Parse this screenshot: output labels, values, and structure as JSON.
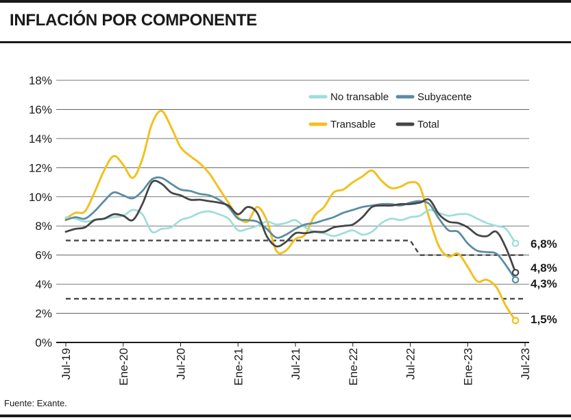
{
  "header": {
    "title": "INFLACIÓN POR COMPONENTE"
  },
  "footer": {
    "source": "Fuente: Exante."
  },
  "chart_data": {
    "type": "line",
    "title": "INFLACIÓN POR COMPONENTE",
    "xlabel": "",
    "ylabel": "",
    "ylim": [
      0,
      18
    ],
    "yticks": [
      "0%",
      "2%",
      "4%",
      "6%",
      "8%",
      "10%",
      "12%",
      "14%",
      "16%",
      "18%"
    ],
    "x_tick_labels": [
      "Jul-19",
      "Ene-20",
      "Jul-20",
      "Ene-21",
      "Jul-21",
      "Ene-22",
      "Jul-22",
      "Ene-23",
      "Jul-23"
    ],
    "x_tick_months": [
      0,
      6,
      12,
      18,
      24,
      30,
      36,
      42,
      48
    ],
    "x_range_months": [
      0,
      48
    ],
    "grid": true,
    "legend": {
      "placement": "top-right",
      "entries": [
        {
          "label": "No transable",
          "series": "no_transable"
        },
        {
          "label": "Subyacente",
          "series": "subyacente"
        },
        {
          "label": "Transable",
          "series": "transable"
        },
        {
          "label": "Total",
          "series": "total"
        }
      ]
    },
    "series": [
      {
        "id": "transable",
        "name": "Transable",
        "color": "#f2c01e",
        "end_label": "1,5%",
        "points": [
          [
            0,
            8.5
          ],
          [
            1,
            8.9
          ],
          [
            2,
            9.0
          ],
          [
            3,
            10.3
          ],
          [
            4,
            11.8
          ],
          [
            5,
            12.8
          ],
          [
            6,
            12.2
          ],
          [
            7,
            11.3
          ],
          [
            8,
            12.6
          ],
          [
            9,
            15.0
          ],
          [
            10,
            15.9
          ],
          [
            11,
            14.8
          ],
          [
            12,
            13.4
          ],
          [
            13,
            12.8
          ],
          [
            14,
            12.3
          ],
          [
            15,
            11.6
          ],
          [
            16,
            10.6
          ],
          [
            17,
            9.6
          ],
          [
            18,
            8.6
          ],
          [
            19,
            8.3
          ],
          [
            20,
            9.3
          ],
          [
            21,
            8.4
          ],
          [
            22,
            6.3
          ],
          [
            23,
            6.3
          ],
          [
            24,
            7.1
          ],
          [
            25,
            7.4
          ],
          [
            26,
            8.7
          ],
          [
            27,
            9.3
          ],
          [
            28,
            10.3
          ],
          [
            29,
            10.5
          ],
          [
            30,
            11.0
          ],
          [
            31,
            11.4
          ],
          [
            32,
            11.8
          ],
          [
            33,
            11.1
          ],
          [
            34,
            10.6
          ],
          [
            35,
            10.7
          ],
          [
            36,
            11.0
          ],
          [
            37,
            10.7
          ],
          [
            38,
            8.5
          ],
          [
            39,
            6.6
          ],
          [
            40,
            5.9
          ],
          [
            41,
            6.1
          ],
          [
            42,
            5.2
          ],
          [
            43,
            4.2
          ],
          [
            44,
            4.3
          ],
          [
            45,
            3.8
          ],
          [
            46,
            2.5
          ],
          [
            47,
            1.5
          ]
        ]
      },
      {
        "id": "no_transable",
        "name": "No transable",
        "color": "#9fded9",
        "end_label": "6,8%",
        "points": [
          [
            0,
            8.6
          ],
          [
            1,
            8.5
          ],
          [
            2,
            8.3
          ],
          [
            3,
            8.4
          ],
          [
            4,
            8.5
          ],
          [
            5,
            8.6
          ],
          [
            6,
            8.7
          ],
          [
            7,
            9.1
          ],
          [
            8,
            8.8
          ],
          [
            9,
            7.6
          ],
          [
            10,
            7.8
          ],
          [
            11,
            7.9
          ],
          [
            12,
            8.4
          ],
          [
            13,
            8.6
          ],
          [
            14,
            8.9
          ],
          [
            15,
            9.0
          ],
          [
            16,
            8.8
          ],
          [
            17,
            8.5
          ],
          [
            18,
            7.7
          ],
          [
            19,
            7.8
          ],
          [
            20,
            8.0
          ],
          [
            21,
            8.3
          ],
          [
            22,
            8.1
          ],
          [
            23,
            8.2
          ],
          [
            24,
            8.4
          ],
          [
            25,
            7.9
          ],
          [
            26,
            7.6
          ],
          [
            27,
            7.5
          ],
          [
            28,
            7.3
          ],
          [
            29,
            7.5
          ],
          [
            30,
            7.7
          ],
          [
            31,
            7.4
          ],
          [
            32,
            7.6
          ],
          [
            33,
            8.2
          ],
          [
            34,
            8.5
          ],
          [
            35,
            8.4
          ],
          [
            36,
            8.6
          ],
          [
            37,
            8.7
          ],
          [
            38,
            9.1
          ],
          [
            39,
            8.9
          ],
          [
            40,
            8.7
          ],
          [
            41,
            8.8
          ],
          [
            42,
            8.8
          ],
          [
            43,
            8.5
          ],
          [
            44,
            8.2
          ],
          [
            45,
            8.0
          ],
          [
            46,
            7.8
          ],
          [
            47,
            6.8
          ]
        ]
      },
      {
        "id": "subyacente",
        "name": "Subyacente",
        "color": "#5b8da3",
        "end_label": "4,3%",
        "points": [
          [
            0,
            8.4
          ],
          [
            1,
            8.6
          ],
          [
            2,
            8.5
          ],
          [
            3,
            9.0
          ],
          [
            4,
            9.7
          ],
          [
            5,
            10.3
          ],
          [
            6,
            10.1
          ],
          [
            7,
            9.9
          ],
          [
            8,
            10.4
          ],
          [
            9,
            11.2
          ],
          [
            10,
            11.3
          ],
          [
            11,
            10.9
          ],
          [
            12,
            10.5
          ],
          [
            13,
            10.4
          ],
          [
            14,
            10.2
          ],
          [
            15,
            10.1
          ],
          [
            16,
            9.8
          ],
          [
            17,
            9.3
          ],
          [
            18,
            8.5
          ],
          [
            19,
            8.4
          ],
          [
            20,
            8.3
          ],
          [
            21,
            7.8
          ],
          [
            22,
            7.2
          ],
          [
            23,
            7.4
          ],
          [
            24,
            7.8
          ],
          [
            25,
            8.1
          ],
          [
            26,
            8.2
          ],
          [
            27,
            8.4
          ],
          [
            28,
            8.6
          ],
          [
            29,
            8.9
          ],
          [
            30,
            9.1
          ],
          [
            31,
            9.3
          ],
          [
            32,
            9.4
          ],
          [
            33,
            9.5
          ],
          [
            34,
            9.5
          ],
          [
            35,
            9.4
          ],
          [
            36,
            9.6
          ],
          [
            37,
            9.7
          ],
          [
            38,
            9.5
          ],
          [
            39,
            8.5
          ],
          [
            40,
            7.7
          ],
          [
            41,
            7.6
          ],
          [
            42,
            6.8
          ],
          [
            43,
            6.3
          ],
          [
            44,
            6.2
          ],
          [
            45,
            6.1
          ],
          [
            46,
            5.3
          ],
          [
            47,
            4.3
          ]
        ]
      },
      {
        "id": "total",
        "name": "Total",
        "color": "#454545",
        "end_label": "4,8%",
        "points": [
          [
            0,
            7.6
          ],
          [
            1,
            7.8
          ],
          [
            2,
            7.9
          ],
          [
            3,
            8.4
          ],
          [
            4,
            8.5
          ],
          [
            5,
            8.8
          ],
          [
            6,
            8.7
          ],
          [
            7,
            8.4
          ],
          [
            8,
            9.5
          ],
          [
            9,
            11.0
          ],
          [
            10,
            10.9
          ],
          [
            11,
            10.3
          ],
          [
            12,
            10.1
          ],
          [
            13,
            9.8
          ],
          [
            14,
            9.8
          ],
          [
            15,
            9.7
          ],
          [
            16,
            9.6
          ],
          [
            17,
            9.4
          ],
          [
            18,
            8.8
          ],
          [
            19,
            9.3
          ],
          [
            20,
            8.9
          ],
          [
            21,
            7.3
          ],
          [
            22,
            6.6
          ],
          [
            23,
            6.9
          ],
          [
            24,
            7.5
          ],
          [
            25,
            7.5
          ],
          [
            26,
            7.6
          ],
          [
            27,
            7.6
          ],
          [
            28,
            7.9
          ],
          [
            29,
            8.0
          ],
          [
            30,
            8.1
          ],
          [
            31,
            8.6
          ],
          [
            32,
            9.3
          ],
          [
            33,
            9.4
          ],
          [
            34,
            9.4
          ],
          [
            35,
            9.5
          ],
          [
            36,
            9.5
          ],
          [
            37,
            9.6
          ],
          [
            38,
            9.8
          ],
          [
            39,
            8.8
          ],
          [
            40,
            8.3
          ],
          [
            41,
            8.2
          ],
          [
            42,
            7.9
          ],
          [
            43,
            7.4
          ],
          [
            44,
            7.3
          ],
          [
            45,
            7.6
          ],
          [
            46,
            6.5
          ],
          [
            47,
            4.8
          ]
        ]
      }
    ],
    "target_band": {
      "style": "dashed",
      "color": "#454545",
      "upper": [
        [
          0,
          7
        ],
        [
          36,
          7
        ],
        [
          37,
          6
        ],
        [
          48,
          6
        ]
      ],
      "lower": [
        [
          0,
          3
        ],
        [
          48,
          3
        ]
      ]
    }
  }
}
